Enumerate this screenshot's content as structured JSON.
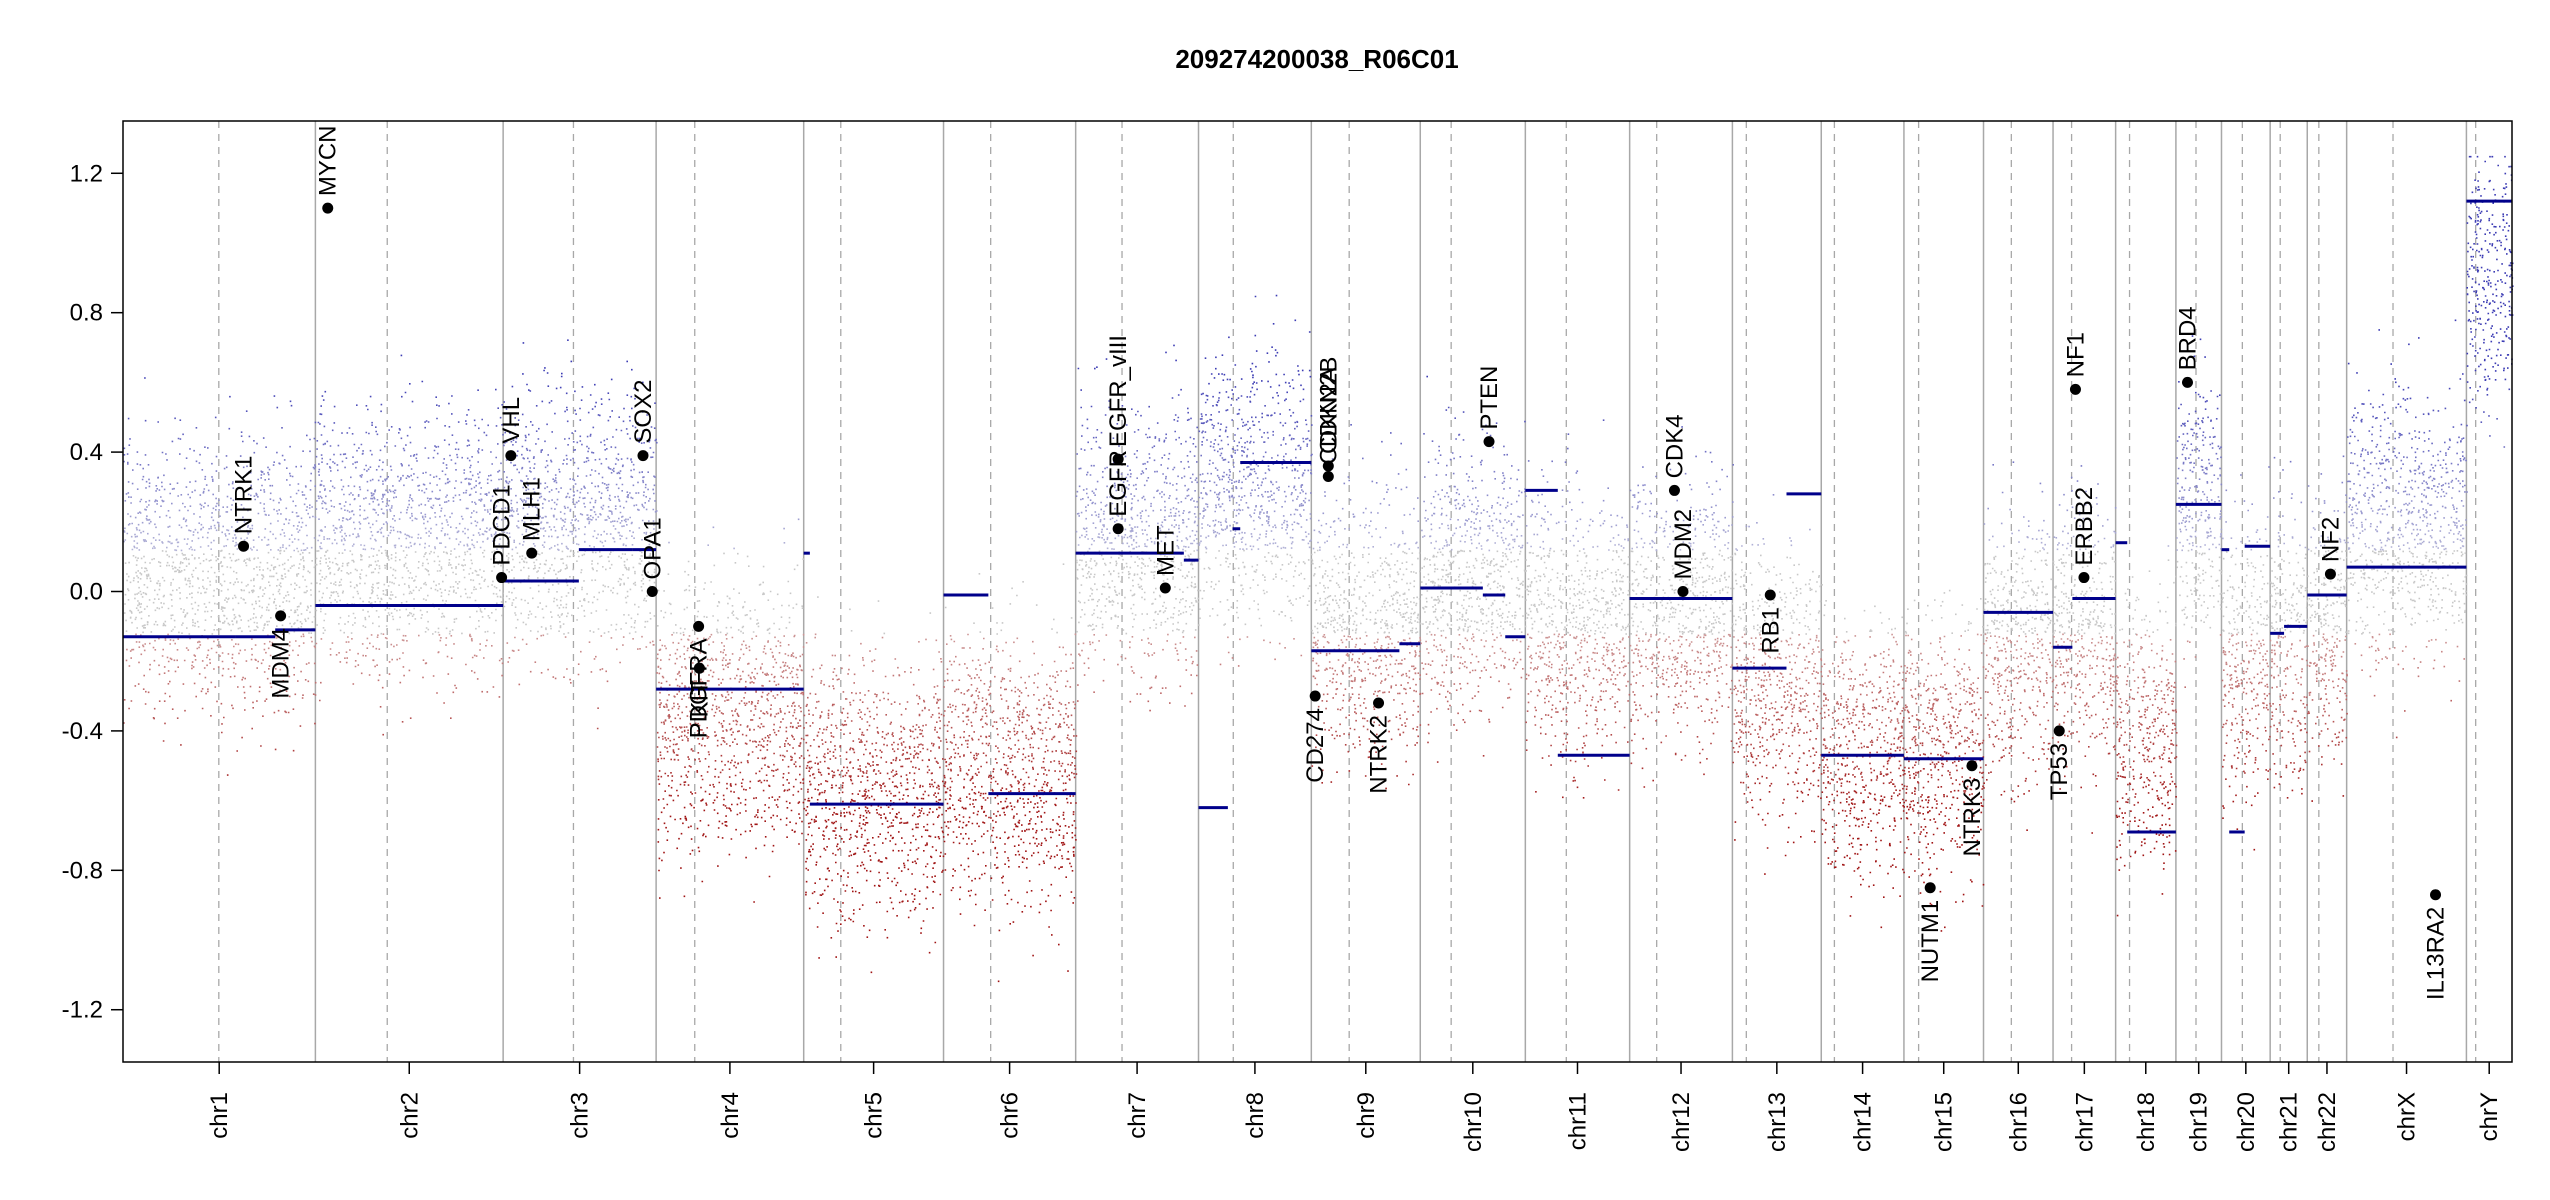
{
  "chart_data": {
    "type": "scatter",
    "title": "209274200038_R06C01",
    "xlabel": "",
    "ylabel": "",
    "ylim": [
      -1.35,
      1.35
    ],
    "yticks": [
      -1.2,
      -0.8,
      -0.4,
      0.0,
      0.4,
      0.8,
      1.2
    ],
    "ytick_labels": [
      "-1.2",
      "-0.8",
      "-0.4",
      "0.0",
      "0.4",
      "0.8",
      "1.2"
    ],
    "grid": "chromosome boundary lines (solid) and centromere lines (dashed)",
    "colors": {
      "gain": "#3b3bb3",
      "loss": "#a01010",
      "neutral": "#bdbdbd",
      "segment": "#00008b",
      "gene": "#000000",
      "boundary": "#a8a8a8"
    },
    "chromosomes": [
      {
        "name": "chr1",
        "size": 249,
        "cen": 124,
        "level": 0.05
      },
      {
        "name": "chr2",
        "size": 243,
        "cen": 93,
        "level": 0.15
      },
      {
        "name": "chr3",
        "size": 198,
        "cen": 91,
        "level": 0.2
      },
      {
        "name": "chr4",
        "size": 191,
        "cen": 50,
        "level": -0.35
      },
      {
        "name": "chr5",
        "size": 181,
        "cen": 48,
        "level": -0.55
      },
      {
        "name": "chr6",
        "size": 171,
        "cen": 61,
        "level": -0.5
      },
      {
        "name": "chr7",
        "size": 159,
        "cen": 60,
        "level": 0.15
      },
      {
        "name": "chr8",
        "size": 146,
        "cen": 45,
        "level": 0.3
      },
      {
        "name": "chr9",
        "size": 141,
        "cen": 49,
        "level": -0.1
      },
      {
        "name": "chr10",
        "size": 136,
        "cen": 40,
        "level": 0.05
      },
      {
        "name": "chr11",
        "size": 135,
        "cen": 53,
        "level": -0.1
      },
      {
        "name": "chr12",
        "size": 133,
        "cen": 35,
        "level": -0.05
      },
      {
        "name": "chr13",
        "size": 115,
        "cen": 18,
        "level": -0.25
      },
      {
        "name": "chr14",
        "size": 107,
        "cen": 17,
        "level": -0.45
      },
      {
        "name": "chr15",
        "size": 103,
        "cen": 19,
        "level": -0.45
      },
      {
        "name": "chr16",
        "size": 90,
        "cen": 36,
        "level": -0.15
      },
      {
        "name": "chr17",
        "size": 81,
        "cen": 24,
        "level": -0.1
      },
      {
        "name": "chr18",
        "size": 78,
        "cen": 18,
        "level": -0.4
      },
      {
        "name": "chr19",
        "size": 59,
        "cen": 26,
        "level": 0.25
      },
      {
        "name": "chr20",
        "size": 63,
        "cen": 27,
        "level": -0.2
      },
      {
        "name": "chr21",
        "size": 48,
        "cen": 13,
        "level": -0.15
      },
      {
        "name": "chr22",
        "size": 51,
        "cen": 15,
        "level": -0.1
      },
      {
        "name": "chrX",
        "size": 155,
        "cen": 60,
        "level": 0.2
      },
      {
        "name": "chrY",
        "size": 59,
        "cen": 12,
        "level": 0.9
      }
    ],
    "segments": [
      {
        "chr": "chr1",
        "start": 0,
        "end": 145,
        "value": -0.13
      },
      {
        "chr": "chr1",
        "start": 145,
        "end": 197,
        "value": -0.13
      },
      {
        "chr": "chr1",
        "start": 197,
        "end": 249,
        "value": -0.11
      },
      {
        "chr": "chr2",
        "start": 0,
        "end": 243,
        "value": -0.04
      },
      {
        "chr": "chr3",
        "start": 0,
        "end": 98,
        "value": 0.03
      },
      {
        "chr": "chr3",
        "start": 98,
        "end": 168,
        "value": 0.12
      },
      {
        "chr": "chr3",
        "start": 168,
        "end": 198,
        "value": 0.12
      },
      {
        "chr": "chr4",
        "start": 0,
        "end": 191,
        "value": -0.28
      },
      {
        "chr": "chr5",
        "start": 0,
        "end": 8,
        "value": 0.11
      },
      {
        "chr": "chr5",
        "start": 8,
        "end": 181,
        "value": -0.61
      },
      {
        "chr": "chr6",
        "start": 0,
        "end": 58,
        "value": -0.01
      },
      {
        "chr": "chr6",
        "start": 58,
        "end": 171,
        "value": -0.58
      },
      {
        "chr": "chr7",
        "start": 0,
        "end": 140,
        "value": 0.11
      },
      {
        "chr": "chr7",
        "start": 140,
        "end": 159,
        "value": 0.09
      },
      {
        "chr": "chr8",
        "start": 0,
        "end": 38,
        "value": -0.62
      },
      {
        "chr": "chr8",
        "start": 44,
        "end": 54,
        "value": 0.18
      },
      {
        "chr": "chr8",
        "start": 54,
        "end": 146,
        "value": 0.37
      },
      {
        "chr": "chr9",
        "start": 0,
        "end": 114,
        "value": -0.17
      },
      {
        "chr": "chr9",
        "start": 114,
        "end": 141,
        "value": -0.15
      },
      {
        "chr": "chr10",
        "start": 0,
        "end": 81,
        "value": 0.01
      },
      {
        "chr": "chr10",
        "start": 81,
        "end": 110,
        "value": -0.01
      },
      {
        "chr": "chr10",
        "start": 110,
        "end": 136,
        "value": -0.13
      },
      {
        "chr": "chr11",
        "start": 0,
        "end": 42,
        "value": 0.29
      },
      {
        "chr": "chr11",
        "start": 42,
        "end": 135,
        "value": -0.47
      },
      {
        "chr": "chr12",
        "start": 0,
        "end": 133,
        "value": -0.02
      },
      {
        "chr": "chr13",
        "start": 0,
        "end": 70,
        "value": -0.22
      },
      {
        "chr": "chr13",
        "start": 70,
        "end": 115,
        "value": 0.28
      },
      {
        "chr": "chr14",
        "start": 0,
        "end": 107,
        "value": -0.47
      },
      {
        "chr": "chr15",
        "start": 0,
        "end": 103,
        "value": -0.48
      },
      {
        "chr": "chr16",
        "start": 0,
        "end": 90,
        "value": -0.06
      },
      {
        "chr": "chr17",
        "start": 0,
        "end": 25,
        "value": -0.16
      },
      {
        "chr": "chr17",
        "start": 25,
        "end": 81,
        "value": -0.02
      },
      {
        "chr": "chr18",
        "start": 0,
        "end": 15,
        "value": 0.14
      },
      {
        "chr": "chr18",
        "start": 15,
        "end": 78,
        "value": -0.69
      },
      {
        "chr": "chr19",
        "start": 0,
        "end": 59,
        "value": 0.25
      },
      {
        "chr": "chr20",
        "start": 0,
        "end": 10,
        "value": 0.12
      },
      {
        "chr": "chr20",
        "start": 10,
        "end": 30,
        "value": -0.69
      },
      {
        "chr": "chr20",
        "start": 30,
        "end": 63,
        "value": 0.13
      },
      {
        "chr": "chr21",
        "start": 0,
        "end": 18,
        "value": -0.12
      },
      {
        "chr": "chr21",
        "start": 18,
        "end": 48,
        "value": -0.1
      },
      {
        "chr": "chr22",
        "start": 0,
        "end": 51,
        "value": -0.01
      },
      {
        "chr": "chrX",
        "start": 0,
        "end": 155,
        "value": 0.07
      },
      {
        "chr": "chrY",
        "start": 0,
        "end": 59,
        "value": 1.12
      }
    ],
    "genes": [
      {
        "label": "NTRK1",
        "chr": "chr1",
        "pos": 156,
        "value": 0.13
      },
      {
        "label": "MDM4",
        "chr": "chr1",
        "pos": 204,
        "value": -0.07
      },
      {
        "label": "MYCN",
        "chr": "chr2",
        "pos": 16,
        "value": 1.1
      },
      {
        "label": "PDCD1",
        "chr": "chr2",
        "pos": 241,
        "value": 0.04
      },
      {
        "label": "VHL",
        "chr": "chr3",
        "pos": 10,
        "value": 0.39
      },
      {
        "label": "MLH1",
        "chr": "chr3",
        "pos": 37,
        "value": 0.11
      },
      {
        "label": "SOX2",
        "chr": "chr3",
        "pos": 181,
        "value": 0.39
      },
      {
        "label": "OPA1",
        "chr": "chr3",
        "pos": 193,
        "value": 0.0
      },
      {
        "label": "PDGFRA",
        "chr": "chr4",
        "pos": 55,
        "value": -0.1
      },
      {
        "label": "KIT",
        "chr": "chr4",
        "pos": 56,
        "value": -0.22
      },
      {
        "label": "EGFR",
        "chr": "chr7",
        "pos": 55,
        "value": 0.18
      },
      {
        "label": "EGFR_vIII",
        "chr": "chr7",
        "pos": 55,
        "value": 0.38
      },
      {
        "label": "MET",
        "chr": "chr7",
        "pos": 116,
        "value": 0.01
      },
      {
        "label": "CDKN2A",
        "chr": "chr9",
        "pos": 22,
        "value": 0.33
      },
      {
        "label": "CDKN2B",
        "chr": "chr9",
        "pos": 22,
        "value": 0.36
      },
      {
        "label": "CD274",
        "chr": "chr9",
        "pos": 5,
        "value": -0.3
      },
      {
        "label": "NTRK2",
        "chr": "chr9",
        "pos": 87,
        "value": -0.32
      },
      {
        "label": "PTEN",
        "chr": "chr10",
        "pos": 89,
        "value": 0.43
      },
      {
        "label": "CDK4",
        "chr": "chr12",
        "pos": 58,
        "value": 0.29
      },
      {
        "label": "MDM2",
        "chr": "chr12",
        "pos": 69,
        "value": 0.0
      },
      {
        "label": "RB1",
        "chr": "chr13",
        "pos": 49,
        "value": -0.01
      },
      {
        "label": "NUTM1",
        "chr": "chr15",
        "pos": 34,
        "value": -0.85
      },
      {
        "label": "NTRK3",
        "chr": "chr15",
        "pos": 88,
        "value": -0.5
      },
      {
        "label": "TP53",
        "chr": "chr17",
        "pos": 8,
        "value": -0.4
      },
      {
        "label": "NF1",
        "chr": "chr17",
        "pos": 29,
        "value": 0.58
      },
      {
        "label": "ERBB2",
        "chr": "chr17",
        "pos": 40,
        "value": 0.04
      },
      {
        "label": "BRD4",
        "chr": "chr19",
        "pos": 15,
        "value": 0.6
      },
      {
        "label": "NF2",
        "chr": "chr22",
        "pos": 30,
        "value": 0.05
      },
      {
        "label": "IL13RA2",
        "chr": "chrX",
        "pos": 115,
        "value": -0.87
      }
    ]
  }
}
